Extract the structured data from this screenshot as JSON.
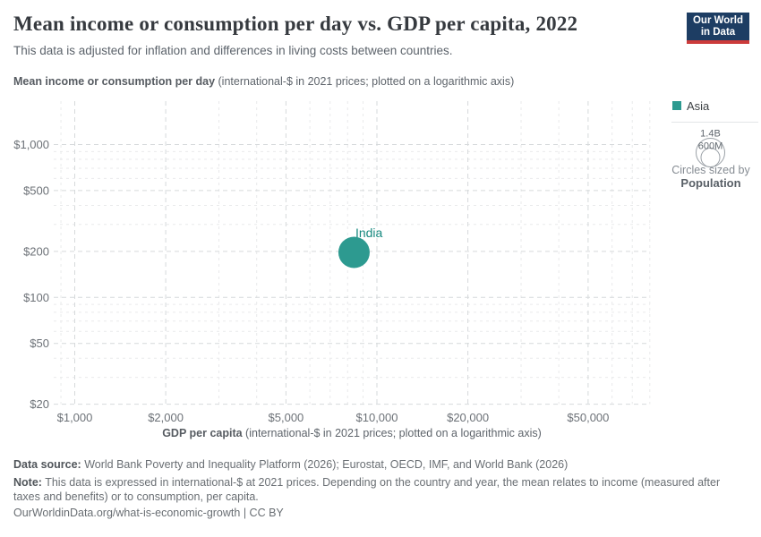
{
  "header": {
    "title": "Mean income or consumption per day vs. GDP per capita, 2022",
    "subtitle": "This data is adjusted for inflation and differences in living costs between countries.",
    "logo": {
      "line1": "Our World",
      "line2": "in Data"
    }
  },
  "axis": {
    "y_label_bold": "Mean income or consumption per day",
    "y_label_rest": " (international-$ in 2021 prices; plotted on a logarithmic axis)",
    "x_label_bold": "GDP per capita",
    "x_label_rest": " (international-$ in 2021 prices; plotted on a logarithmic axis)"
  },
  "legend": {
    "items": [
      {
        "label": "Asia",
        "color": "#2d9a90"
      }
    ],
    "size": {
      "outer_label": "1.4B",
      "inner_label": "600M",
      "caption": "Circles sized by",
      "caption_bold": "Population"
    }
  },
  "chart_data": {
    "type": "scatter",
    "title": "Mean income or consumption per day vs. GDP per capita, 2022",
    "xlabel": "GDP per capita (international-$ in 2021 prices; plotted on a logarithmic axis)",
    "ylabel": "Mean income or consumption per day (international-$ in 2021 prices; plotted on a logarithmic axis)",
    "x_scale": "log",
    "y_scale": "log",
    "x_range": [
      860,
      81500
    ],
    "y_range": [
      20,
      1930
    ],
    "grid": "dashed",
    "legend_position": "top-right",
    "x_ticks": [
      {
        "value": 1000,
        "label": "$1,000"
      },
      {
        "value": 2000,
        "label": "$2,000"
      },
      {
        "value": 5000,
        "label": "$5,000"
      },
      {
        "value": 10000,
        "label": "$10,000"
      },
      {
        "value": 20000,
        "label": "$20,000"
      },
      {
        "value": 50000,
        "label": "$50,000"
      }
    ],
    "x_minor_ticks": [
      900,
      3000,
      4000,
      6000,
      7000,
      8000,
      9000,
      30000,
      40000,
      60000,
      70000,
      80000
    ],
    "y_ticks": [
      {
        "value": 20,
        "label": "$20"
      },
      {
        "value": 50,
        "label": "$50"
      },
      {
        "value": 100,
        "label": "$100"
      },
      {
        "value": 200,
        "label": "$200"
      },
      {
        "value": 500,
        "label": "$500"
      },
      {
        "value": 1000,
        "label": "$1,000"
      }
    ],
    "y_minor_ticks": [
      30,
      40,
      60,
      70,
      80,
      90,
      300,
      400,
      600,
      700,
      800,
      900
    ],
    "series": [
      {
        "name": "Asia",
        "color": "#2d9a90",
        "label_color": "#17897f",
        "points": [
          {
            "label": "India",
            "x": 8400,
            "y": 197,
            "population": "1.4B"
          }
        ]
      }
    ],
    "sized_by": "Population"
  },
  "footer": {
    "data_source_label": "Data source:",
    "data_source_text": " World Bank Poverty and Inequality Platform (2026); Eurostat, OECD, IMF, and World Bank (2026)",
    "note_label": "Note:",
    "note_text": " This data is expressed in international-$ at 2021 prices. Depending on the country and year, the mean relates to income (measured after taxes and benefits) or to consumption, per capita.",
    "link": "OurWorldinData.org/what-is-economic-growth",
    "license": " | CC BY"
  }
}
